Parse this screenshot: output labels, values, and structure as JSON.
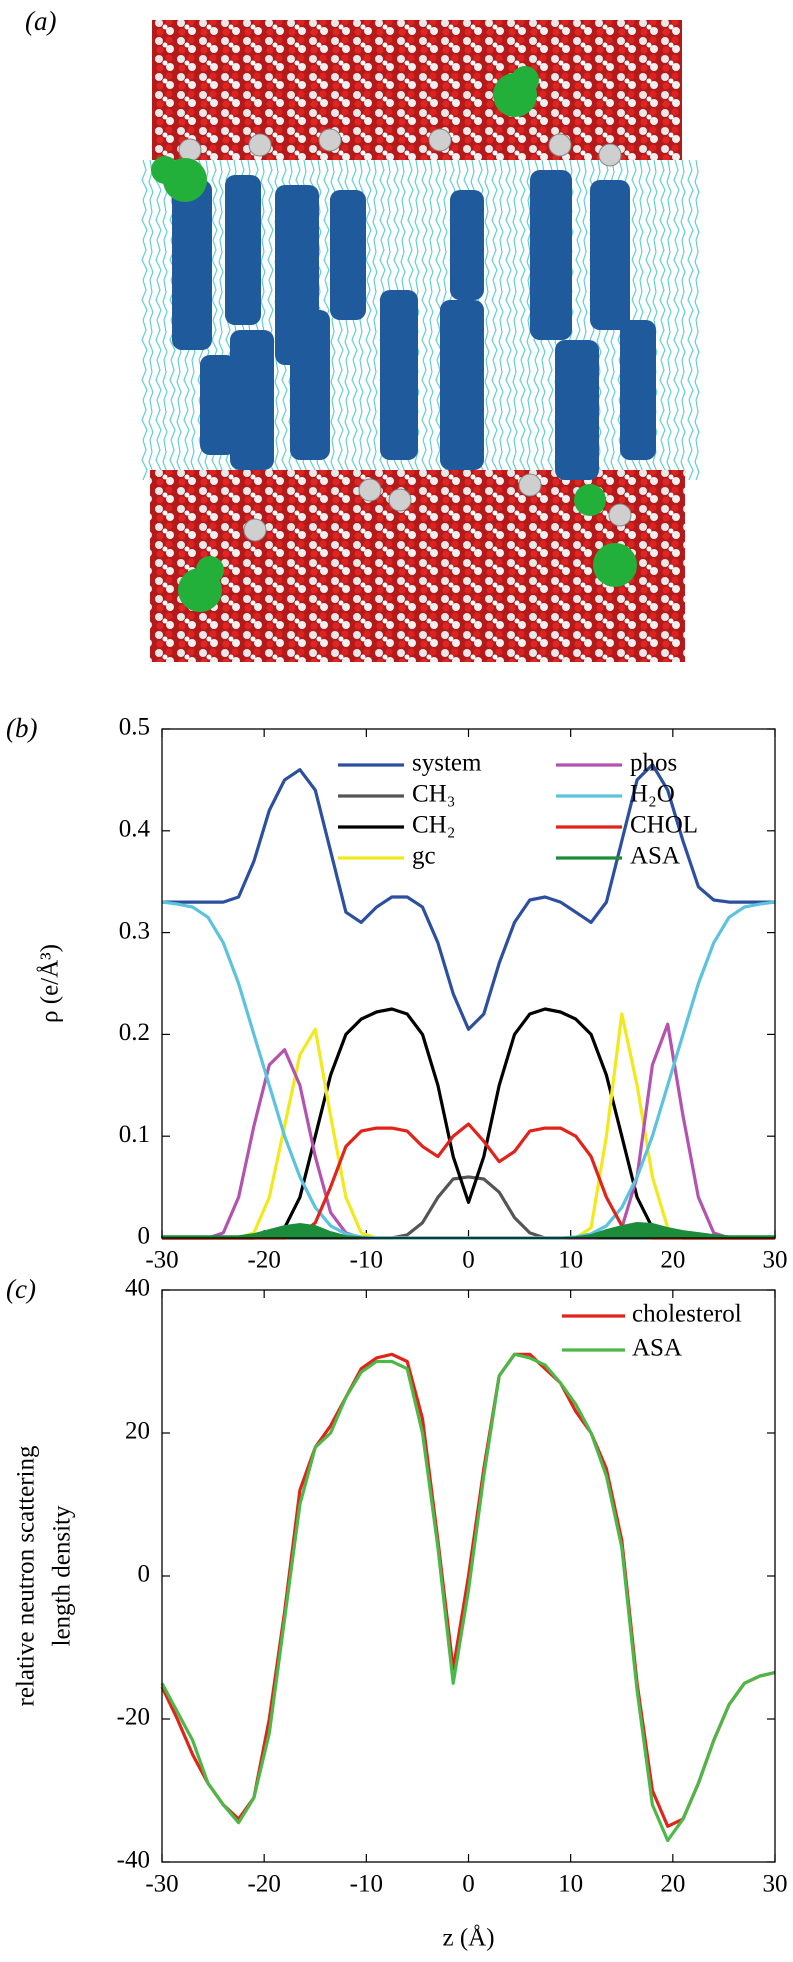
{
  "panel_a": {
    "label": "(a)"
  },
  "chart_data": [
    {
      "type": "line",
      "panel_label": "(b)",
      "ylabel": "ρ (e/Å³)",
      "xlim": [
        -30,
        30
      ],
      "ylim": [
        0,
        0.5
      ],
      "xticks": [
        -30,
        -20,
        -10,
        0,
        10,
        20,
        30
      ],
      "yticks": [
        0,
        0.1,
        0.2,
        0.3,
        0.4,
        0.5
      ],
      "legend": "upper center",
      "x": [
        -30,
        -28.5,
        -27,
        -25.5,
        -24,
        -22.5,
        -21,
        -19.5,
        -18,
        -16.5,
        -15,
        -13.5,
        -12,
        -10.5,
        -9,
        -7.5,
        -6,
        -4.5,
        -3,
        -1.5,
        0,
        1.5,
        3,
        4.5,
        6,
        7.5,
        9,
        10.5,
        12,
        13.5,
        15,
        16.5,
        18,
        19.5,
        21,
        22.5,
        24,
        25.5,
        27,
        28.5,
        30
      ],
      "series": [
        {
          "name": "system",
          "color": "#2c4fa0",
          "values": [
            0.33,
            0.33,
            0.33,
            0.33,
            0.33,
            0.335,
            0.37,
            0.42,
            0.45,
            0.46,
            0.44,
            0.38,
            0.32,
            0.31,
            0.325,
            0.335,
            0.335,
            0.325,
            0.29,
            0.24,
            0.205,
            0.22,
            0.27,
            0.31,
            0.332,
            0.335,
            0.33,
            0.32,
            0.31,
            0.33,
            0.39,
            0.45,
            0.465,
            0.44,
            0.39,
            0.345,
            0.332,
            0.33,
            0.33,
            0.33,
            0.33
          ]
        },
        {
          "name": "CH₃",
          "color": "#555555",
          "values": [
            0,
            0,
            0,
            0,
            0,
            0,
            0,
            0,
            0,
            0,
            0,
            0,
            0,
            0,
            0,
            0,
            0.003,
            0.015,
            0.04,
            0.058,
            0.06,
            0.058,
            0.045,
            0.02,
            0.005,
            0,
            0,
            0,
            0,
            0,
            0,
            0,
            0,
            0,
            0,
            0,
            0,
            0,
            0,
            0,
            0
          ]
        },
        {
          "name": "CH₂",
          "color": "#000000",
          "values": [
            0,
            0,
            0,
            0,
            0,
            0,
            0,
            0.002,
            0.01,
            0.04,
            0.1,
            0.16,
            0.2,
            0.215,
            0.222,
            0.225,
            0.22,
            0.2,
            0.15,
            0.08,
            0.035,
            0.08,
            0.15,
            0.2,
            0.22,
            0.225,
            0.222,
            0.215,
            0.2,
            0.16,
            0.1,
            0.04,
            0.01,
            0.002,
            0,
            0,
            0,
            0,
            0,
            0,
            0
          ]
        },
        {
          "name": "gc",
          "color": "#f2e91c",
          "values": [
            0,
            0,
            0,
            0,
            0,
            0,
            0.005,
            0.04,
            0.11,
            0.18,
            0.205,
            0.12,
            0.04,
            0.005,
            0,
            0,
            0,
            0,
            0,
            0,
            0,
            0,
            0,
            0,
            0,
            0,
            0,
            0,
            0.01,
            0.1,
            0.22,
            0.15,
            0.06,
            0.01,
            0,
            0,
            0,
            0,
            0,
            0,
            0
          ]
        },
        {
          "name": "phos",
          "color": "#b452b0",
          "values": [
            0,
            0,
            0,
            0,
            0.005,
            0.04,
            0.11,
            0.17,
            0.185,
            0.15,
            0.08,
            0.025,
            0.005,
            0,
            0,
            0,
            0,
            0,
            0,
            0,
            0,
            0,
            0,
            0,
            0,
            0,
            0,
            0,
            0,
            0.002,
            0.01,
            0.06,
            0.17,
            0.21,
            0.12,
            0.04,
            0.005,
            0,
            0,
            0,
            0
          ]
        },
        {
          "name": "H₂O",
          "color": "#5bc3de",
          "values": [
            0.33,
            0.328,
            0.325,
            0.315,
            0.29,
            0.25,
            0.2,
            0.15,
            0.1,
            0.06,
            0.03,
            0.012,
            0.004,
            0.001,
            0,
            0,
            0,
            0,
            0,
            0,
            0,
            0,
            0,
            0,
            0,
            0,
            0,
            0.001,
            0.004,
            0.012,
            0.03,
            0.06,
            0.1,
            0.15,
            0.2,
            0.25,
            0.29,
            0.315,
            0.325,
            0.328,
            0.33
          ]
        },
        {
          "name": "CHOL",
          "color": "#e2231a",
          "values": [
            0,
            0,
            0,
            0,
            0,
            0,
            0,
            0,
            0,
            0.003,
            0.015,
            0.05,
            0.09,
            0.105,
            0.108,
            0.108,
            0.105,
            0.09,
            0.08,
            0.1,
            0.112,
            0.095,
            0.075,
            0.085,
            0.105,
            0.108,
            0.108,
            0.1,
            0.08,
            0.04,
            0.012,
            0.003,
            0,
            0,
            0,
            0,
            0,
            0,
            0,
            0,
            0
          ]
        },
        {
          "name": "ASA",
          "color": "#1a8c3a",
          "fill": true,
          "values": [
            0.002,
            0.002,
            0.002,
            0.002,
            0.002,
            0.002,
            0.004,
            0.008,
            0.012,
            0.014,
            0.012,
            0.006,
            0.002,
            0.001,
            0,
            0,
            0,
            0,
            0,
            0,
            0,
            0,
            0,
            0,
            0,
            0,
            0,
            0.001,
            0.003,
            0.008,
            0.012,
            0.015,
            0.014,
            0.01,
            0.007,
            0.005,
            0.003,
            0.002,
            0.002,
            0.002,
            0.002
          ]
        }
      ]
    },
    {
      "type": "line",
      "panel_label": "(c)",
      "ylabel": [
        "relative neutron scattering",
        "length density"
      ],
      "xlabel": "z (Å)",
      "xlim": [
        -30,
        30
      ],
      "ylim": [
        -40,
        40
      ],
      "xticks": [
        -30,
        -20,
        -10,
        0,
        10,
        20,
        30
      ],
      "yticks": [
        -40,
        -20,
        0,
        20,
        40
      ],
      "legend": "upper right",
      "x": [
        -30,
        -28.5,
        -27,
        -25.5,
        -24,
        -22.5,
        -21,
        -19.5,
        -18,
        -16.5,
        -15,
        -13.5,
        -12,
        -10.5,
        -9,
        -7.5,
        -6,
        -4.5,
        -3,
        -1.5,
        0,
        1.5,
        3,
        4.5,
        6,
        7.5,
        9,
        10.5,
        12,
        13.5,
        15,
        16.5,
        18,
        19.5,
        21,
        22.5,
        24,
        25.5,
        27,
        28.5,
        30
      ],
      "series": [
        {
          "name": "cholesterol",
          "color": "#e2231a",
          "values": [
            -15.5,
            -20,
            -25,
            -29,
            -32,
            -34,
            -31,
            -20,
            -5,
            12,
            18,
            21,
            25,
            29,
            30.5,
            31,
            30,
            22,
            5,
            -13,
            0,
            15,
            28,
            31,
            31,
            29,
            27,
            23,
            20,
            15,
            5,
            -15,
            -30,
            -35,
            -34,
            -29,
            -23,
            -18,
            -15,
            -14,
            -13.5
          ]
        },
        {
          "name": "ASA",
          "color": "#4cb848",
          "values": [
            -15,
            -19,
            -23,
            -29,
            -32,
            -34.5,
            -31,
            -22,
            -6,
            10,
            18,
            20,
            25,
            28.5,
            30,
            30,
            29,
            20,
            4,
            -15,
            -2,
            14,
            28,
            31,
            30.5,
            29.5,
            27,
            24,
            20,
            14,
            4,
            -16,
            -32,
            -37,
            -34,
            -29,
            -23,
            -18,
            -15,
            -14,
            -13.5
          ]
        }
      ]
    }
  ]
}
